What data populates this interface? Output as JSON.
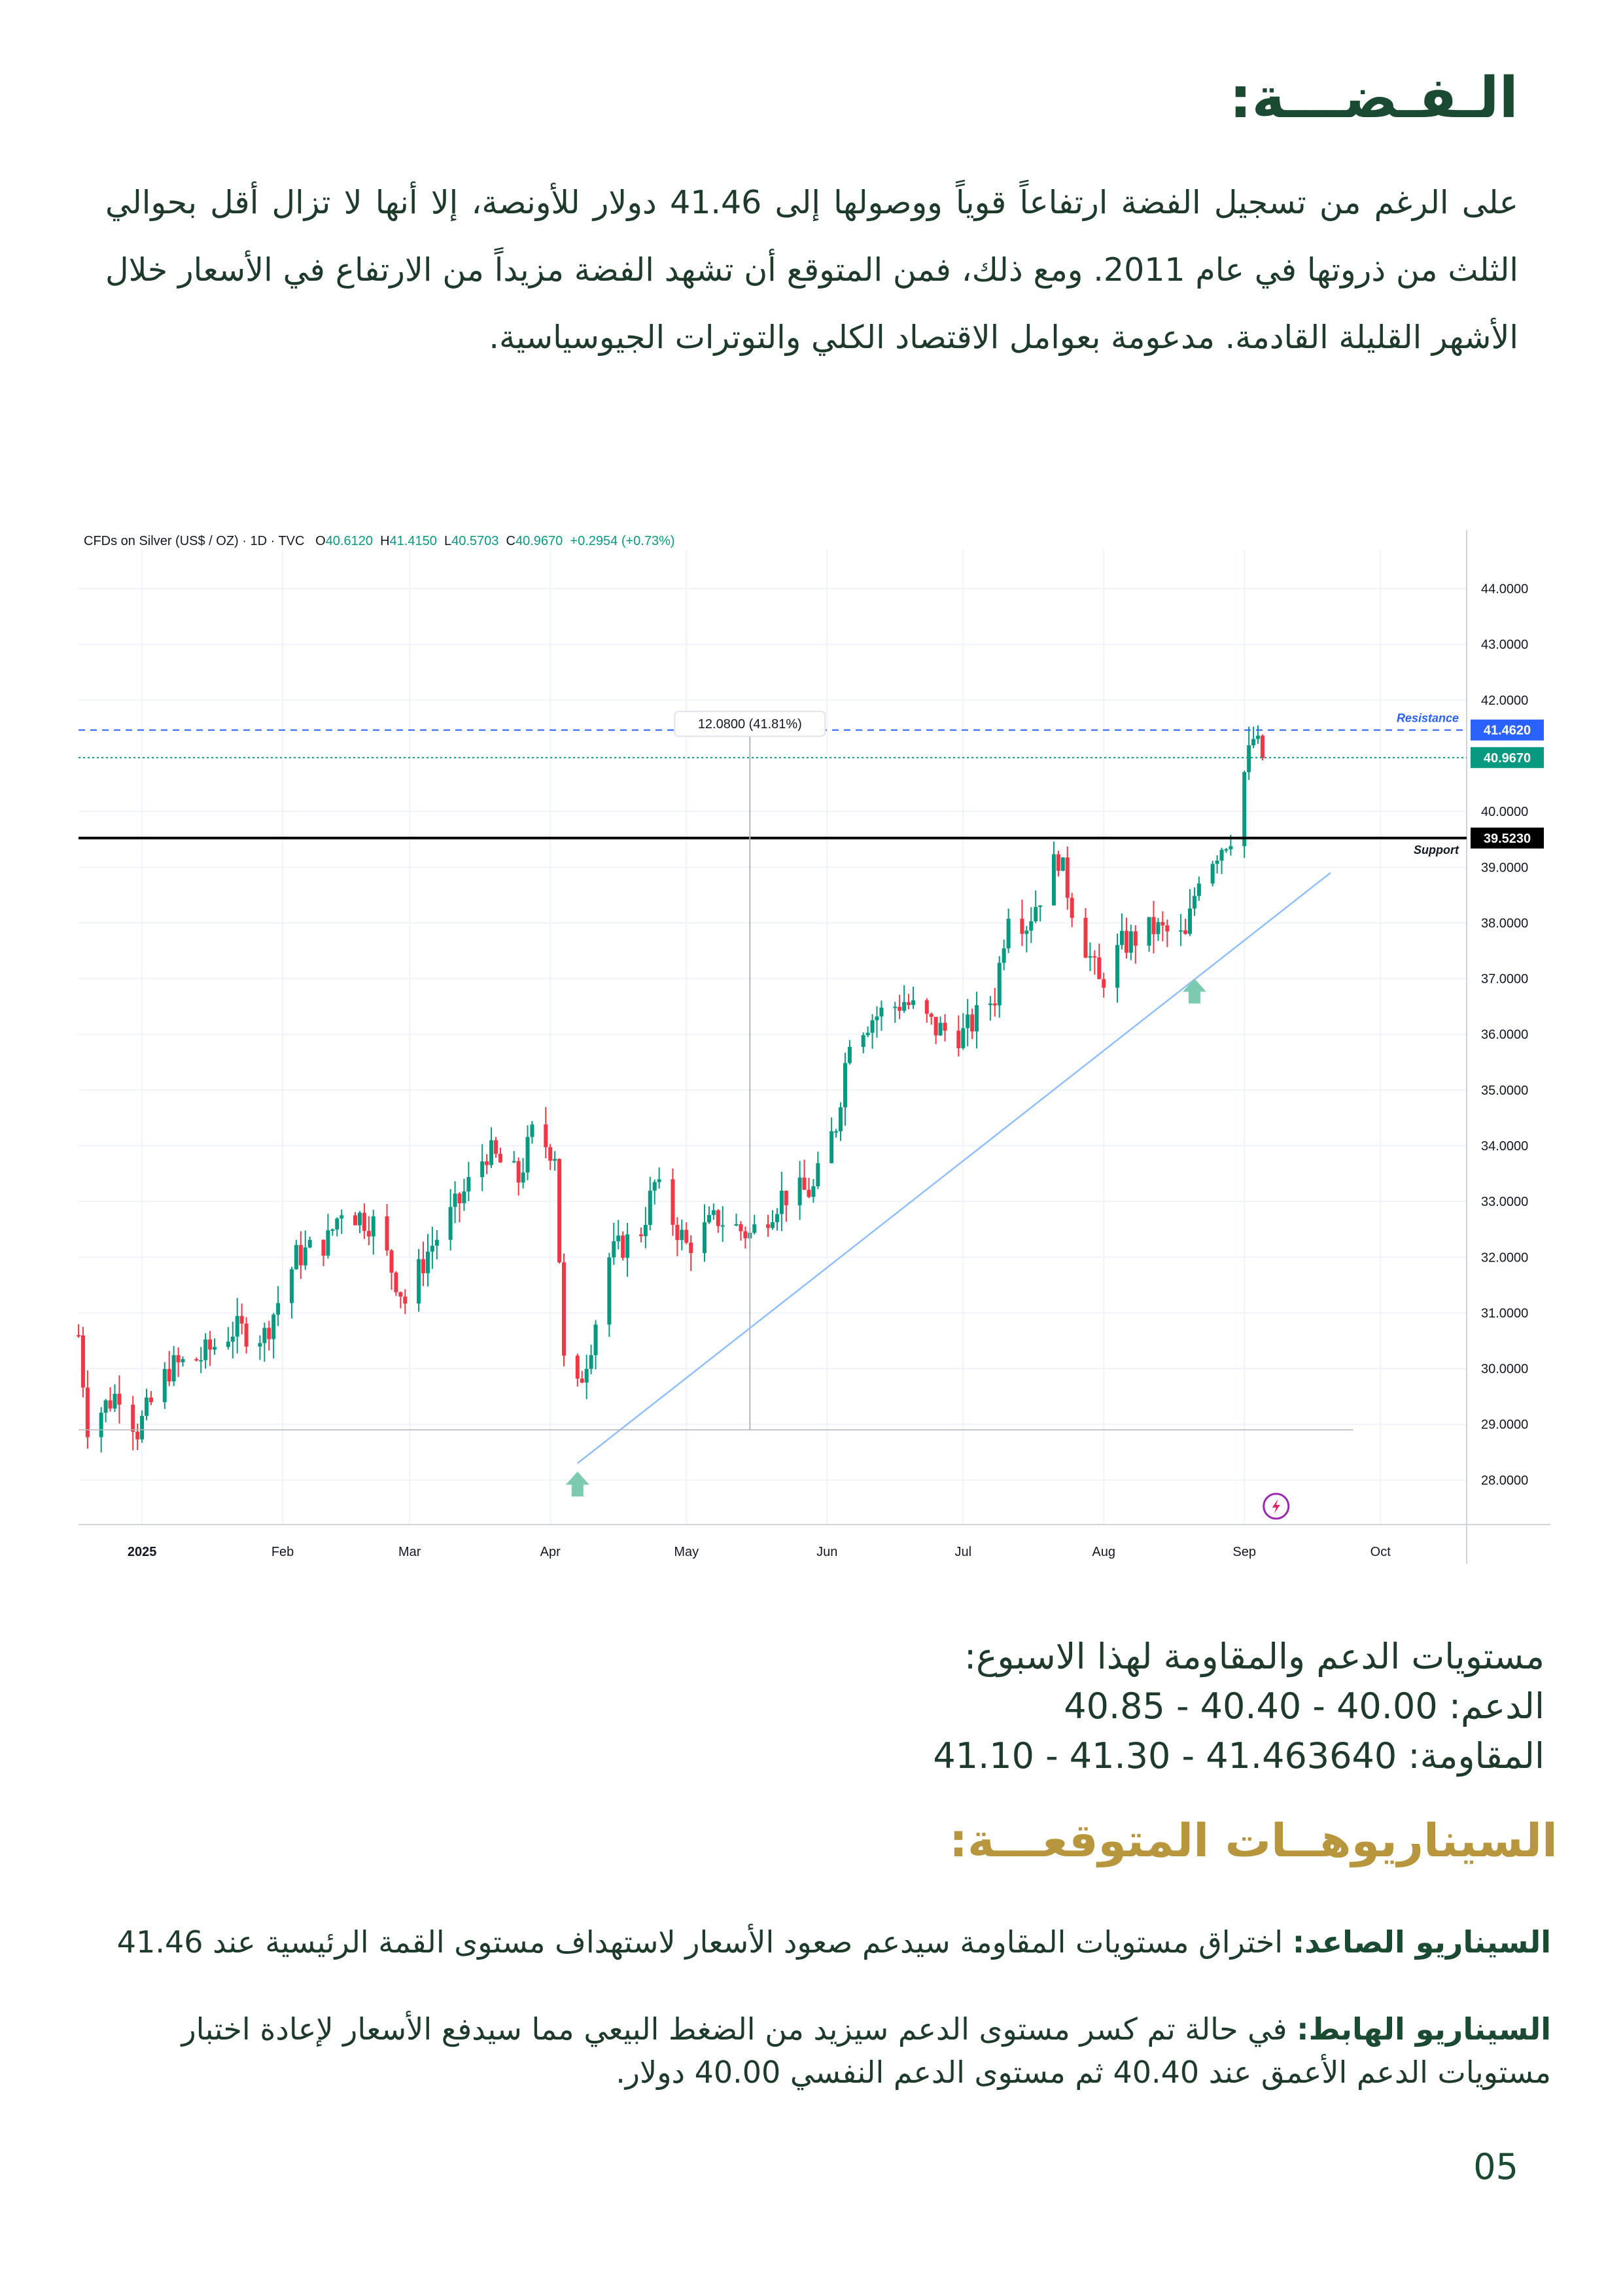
{
  "page": {
    "section_title": "الـفـضـــة:",
    "intro": "على الرغم من تسجيل الفضة ارتفاعاً قوياً ووصولها إلى 41.46 دولار للأونصة، إلا أنها لا تزال أقل بحوالي الثلث من ذروتها في عام 2011. ومع ذلك، فمن المتوقع أن تشهد الفضة مزيداً من الارتفاع في الأسعار خلال الأشهر القليلة القادمة. مدعومة بعوامل الاقتصاد الكلي والتوترات الجيوسياسية.",
    "levels_heading": "مستويات الدعم والمقاومة لهذا الاسبوع:",
    "support_label": "الدعم:",
    "support_values": "40.85 - 40.40 - 40.00",
    "resistance_label": "المقاومة:",
    "resistance_values": "41.10 - 41.30 - 41.463640",
    "scenarios_title": "السيناريوهــات المتوقعـــة:",
    "scenario_up_label": "السيناريو الصاعد:",
    "scenario_up_text": " اختراق مستويات المقاومة سيدعم صعود الأسعار لاستهداف مستوى القمة الرئيسية عند 41.46",
    "scenario_down_label": "السيناريو الهابط:",
    "scenario_down_text": " في حالة تم كسر مستوى الدعم سيزيد من الضغط البيعي مما سيدفع الأسعار لإعادة اختبار مستويات الدعم الأعمق عند 40.40 ثم مستوى الدعم النفسي 40.00 دولار.",
    "page_number": "05"
  },
  "chart_data": {
    "type": "candlestick",
    "title": "CFDs on Silver (US$ / OZ) · 1D · TVC",
    "ohlc_header": {
      "o_label": "O",
      "o": "40.6120",
      "h_label": "H",
      "h": "41.4150",
      "l_label": "L",
      "l": "40.5703",
      "c_label": "C",
      "c": "40.9670",
      "change": "+0.2954 (+0.73%)"
    },
    "x_ticks": [
      "2025",
      "Feb",
      "Mar",
      "Apr",
      "May",
      "Jun",
      "Jul",
      "Aug",
      "Sep",
      "Oct"
    ],
    "y_ticks": [
      "44.0000",
      "43.0000",
      "42.0000",
      "40.0000",
      "39.0000",
      "38.0000",
      "37.0000",
      "36.0000",
      "35.0000",
      "34.0000",
      "33.0000",
      "32.0000",
      "31.0000",
      "30.0000",
      "29.0000",
      "28.0000"
    ],
    "ylim": [
      27.2,
      44.7
    ],
    "x_range": [
      "2024-12-18",
      "2025-10-20"
    ],
    "close_series": [
      [
        "2024-12-18",
        30.6
      ],
      [
        "2024-12-20",
        29.0
      ],
      [
        "2024-12-27",
        29.6
      ],
      [
        "2024-12-31",
        28.9
      ],
      [
        "2025-01-07",
        30.0
      ],
      [
        "2025-01-14",
        30.2
      ],
      [
        "2025-01-21",
        30.7
      ],
      [
        "2025-01-28",
        30.6
      ],
      [
        "2025-02-04",
        32.0
      ],
      [
        "2025-02-11",
        32.3
      ],
      [
        "2025-02-14",
        32.9
      ],
      [
        "2025-02-21",
        32.6
      ],
      [
        "2025-02-28",
        31.2
      ],
      [
        "2025-03-05",
        32.1
      ],
      [
        "2025-03-12",
        33.0
      ],
      [
        "2025-03-18",
        33.9
      ],
      [
        "2025-03-25",
        33.4
      ],
      [
        "2025-03-28",
        34.2
      ],
      [
        "2025-04-02",
        33.9
      ],
      [
        "2025-04-04",
        30.1
      ],
      [
        "2025-04-07",
        29.6
      ],
      [
        "2025-04-10",
        30.5
      ],
      [
        "2025-04-14",
        32.0
      ],
      [
        "2025-04-21",
        32.5
      ],
      [
        "2025-04-24",
        33.3
      ],
      [
        "2025-05-01",
        32.2
      ],
      [
        "2025-05-08",
        32.7
      ],
      [
        "2025-05-15",
        32.4
      ],
      [
        "2025-05-22",
        33.1
      ],
      [
        "2025-05-29",
        33.2
      ],
      [
        "2025-06-03",
        34.4
      ],
      [
        "2025-06-06",
        36.0
      ],
      [
        "2025-06-11",
        36.3
      ],
      [
        "2025-06-18",
        36.6
      ],
      [
        "2025-06-25",
        36.1
      ],
      [
        "2025-07-01",
        36.0
      ],
      [
        "2025-07-08",
        36.7
      ],
      [
        "2025-07-11",
        38.3
      ],
      [
        "2025-07-15",
        38.0
      ],
      [
        "2025-07-22",
        39.2
      ],
      [
        "2025-07-25",
        38.3
      ],
      [
        "2025-07-31",
        36.9
      ],
      [
        "2025-08-05",
        37.6
      ],
      [
        "2025-08-12",
        37.9
      ],
      [
        "2025-08-19",
        37.7
      ],
      [
        "2025-08-22",
        38.9
      ],
      [
        "2025-08-29",
        39.6
      ],
      [
        "2025-09-01",
        40.7
      ],
      [
        "2025-09-03",
        41.3
      ],
      [
        "2025-09-05",
        40.97
      ]
    ],
    "horizontal_lines": [
      {
        "label": "Resistance",
        "value": 41.462,
        "value_text": "41.4620"
      },
      {
        "label": "",
        "value": 40.967,
        "value_text": "40.9670"
      },
      {
        "label": "Support",
        "value": 39.523,
        "value_text": "39.5230"
      }
    ],
    "trendline": [
      [
        "2025-04-07",
        28.3
      ],
      [
        "2025-09-20",
        38.9
      ]
    ],
    "measure_label": "12.0800 (41.81%)",
    "colors": {
      "up": "#089981",
      "down": "#f23645",
      "support": "#000000",
      "resistance": "#2962ff",
      "trend": "#90bfff",
      "arrow": "#7ccbb0"
    }
  }
}
